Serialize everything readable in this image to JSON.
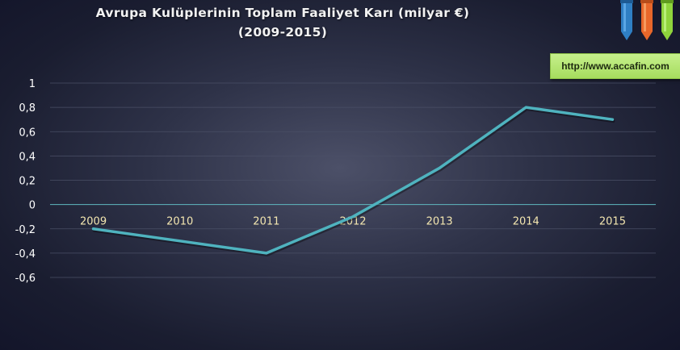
{
  "title": "Avrupa Kulüplerinin Toplam Faaliyet Karı (milyar €)",
  "subtitle": "(2009-2015)",
  "badge": {
    "text": "http://www.accafin.com",
    "icon": "pencils-logo-icon"
  },
  "chart_data": {
    "type": "line",
    "title": "Avrupa Kulüplerinin Toplam Faaliyet Karı (milyar €)",
    "subtitle": "(2009-2015)",
    "xlabel": "",
    "ylabel": "",
    "categories": [
      "2009",
      "2010",
      "2011",
      "2012",
      "2013",
      "2014",
      "2015"
    ],
    "series": [
      {
        "values": [
          -0.2,
          -0.3,
          -0.4,
          -0.1,
          0.3,
          0.8,
          0.7
        ]
      }
    ],
    "yticks": [
      "1",
      "0,8",
      "0,6",
      "0,4",
      "0,2",
      "0",
      "-0,2",
      "-0,4",
      "-0,6"
    ],
    "ylim": [
      -0.6,
      1
    ],
    "grid": true,
    "legend": "none",
    "colors": {
      "line": "#4fb3bf",
      "grid": "#4a4f66",
      "zero_line": "#5fb8c0",
      "text": "#ffffff",
      "category_text": "#f3e6b0"
    }
  }
}
